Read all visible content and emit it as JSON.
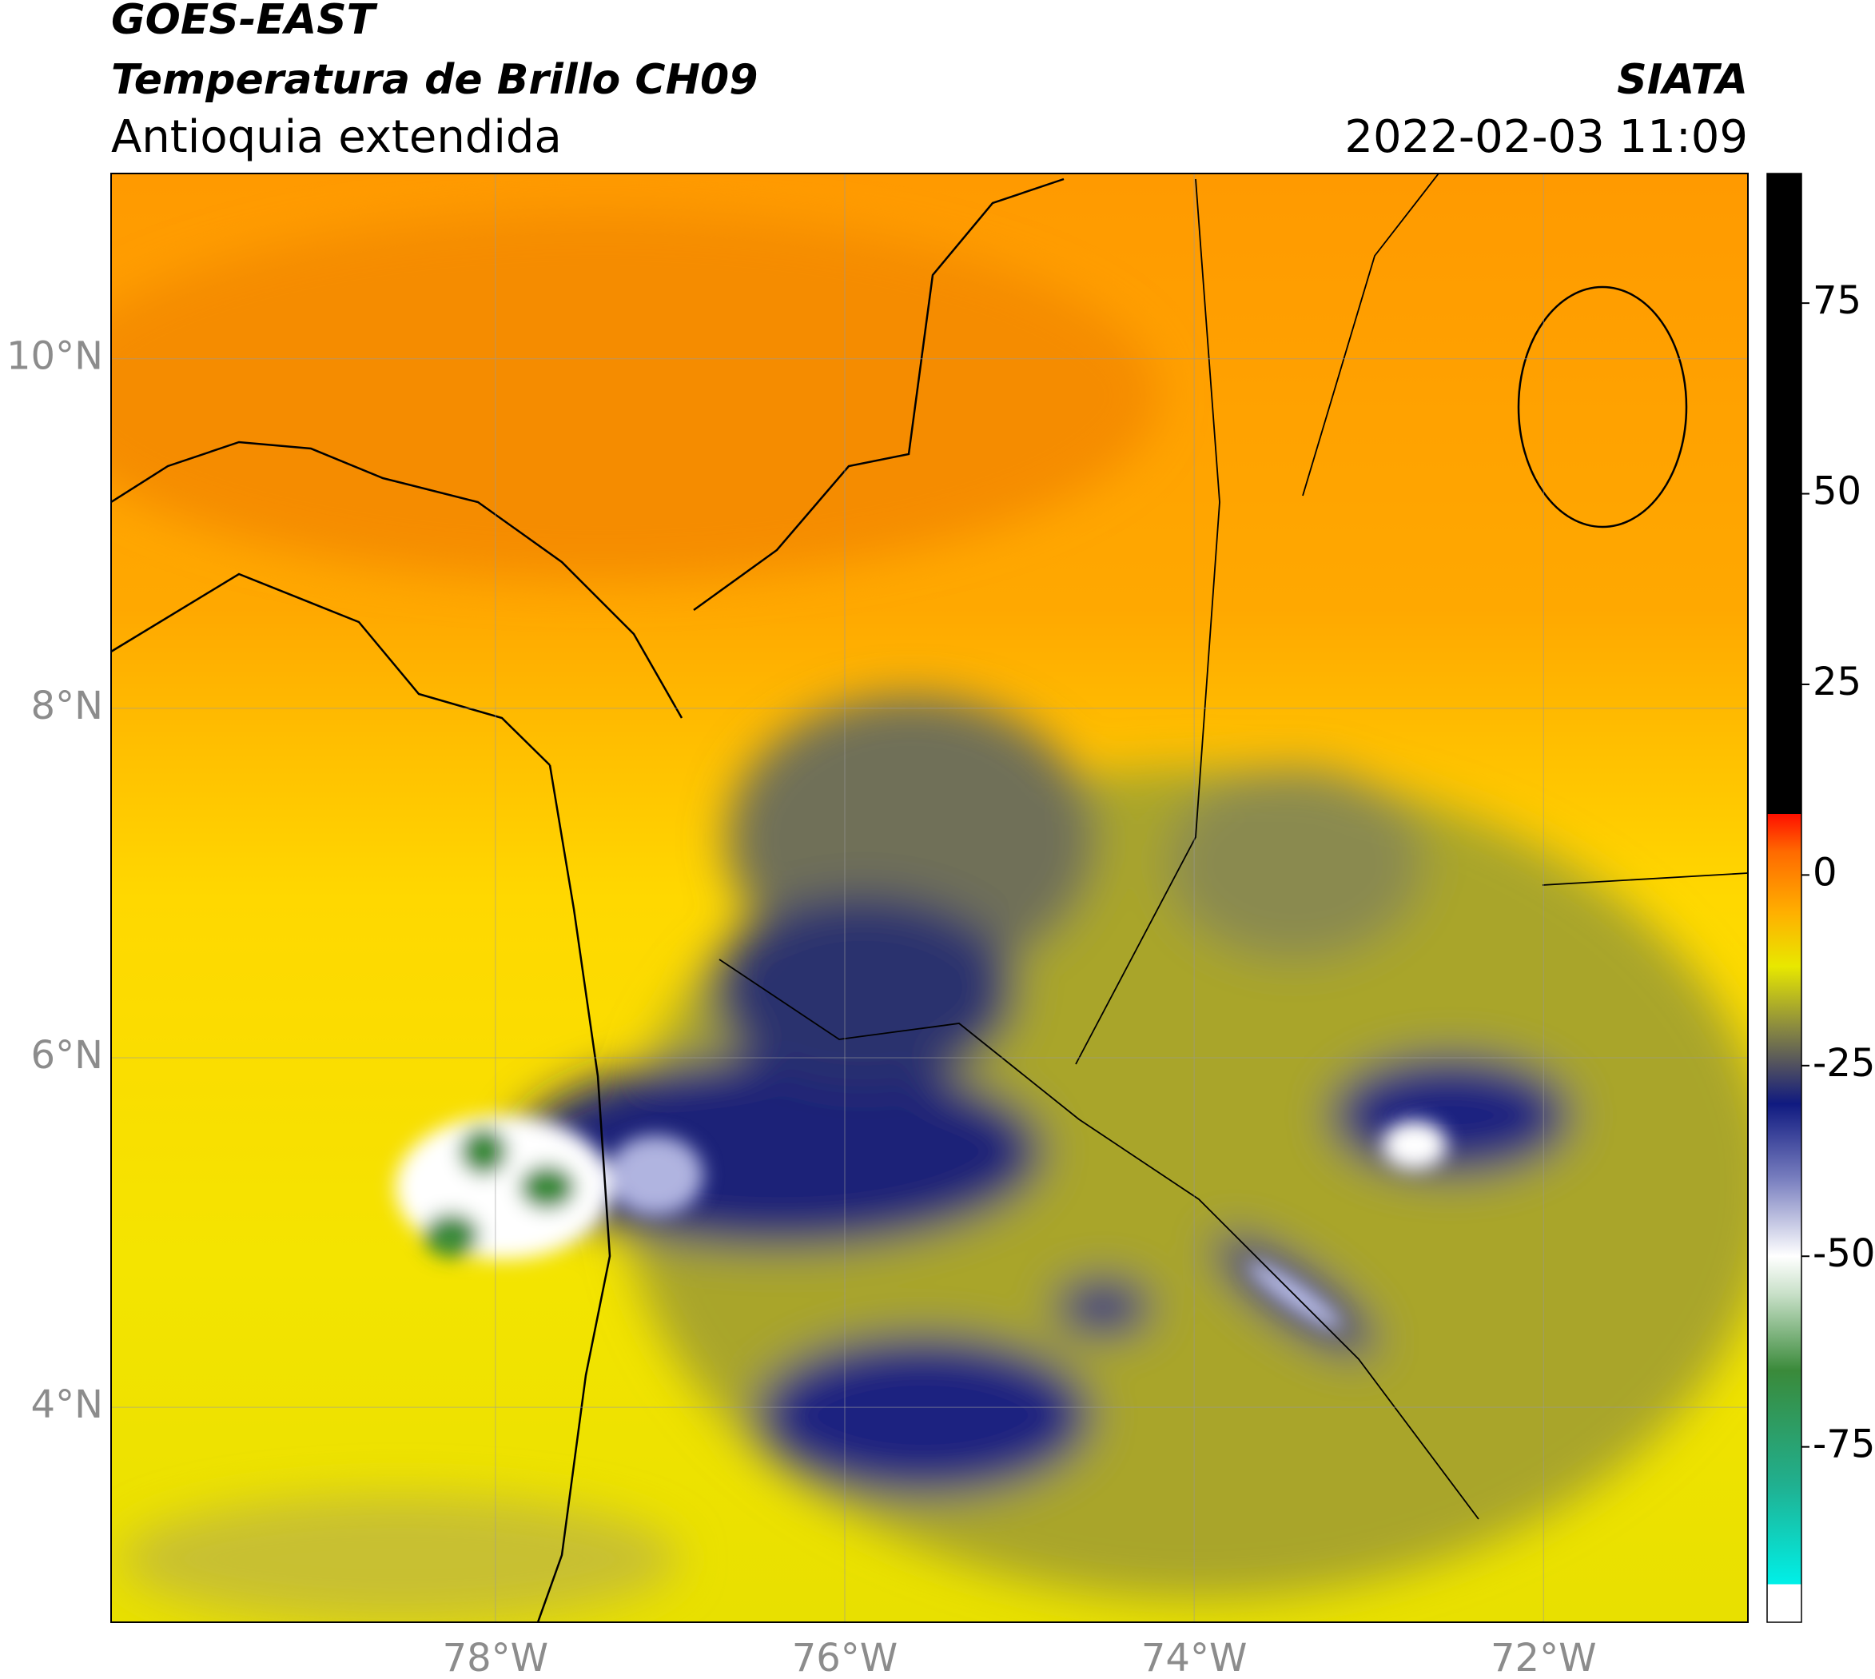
{
  "header": {
    "title": "GOES-EAST",
    "subtitle": "Temperatura de Brillo CH09",
    "region": "Antioquia extendida",
    "source": "SIATA",
    "datetime": "2022-02-03 11:09"
  },
  "map": {
    "xlim": [
      -80.2,
      -70.83
    ],
    "ylim": [
      2.77,
      11.06
    ],
    "xticks": [
      {
        "value": -78,
        "label": "78°W"
      },
      {
        "value": -76,
        "label": "76°W"
      },
      {
        "value": -74,
        "label": "74°W"
      },
      {
        "value": -72,
        "label": "72°W"
      }
    ],
    "yticks": [
      {
        "value": 4,
        "label": "4°N"
      },
      {
        "value": 6,
        "label": "6°N"
      },
      {
        "value": 8,
        "label": "8°N"
      },
      {
        "value": 10,
        "label": "10°N"
      }
    ],
    "grid": true
  },
  "colorbar": {
    "lim": [
      -98,
      92
    ],
    "ticks": [
      -75,
      -50,
      -25,
      0,
      25,
      50,
      75
    ],
    "stops": [
      [
        -98,
        "#ffffff"
      ],
      [
        -93,
        "#ffffff"
      ],
      [
        -93,
        "#00f0e8"
      ],
      [
        -80,
        "#20b090"
      ],
      [
        -65,
        "#3a8a3a"
      ],
      [
        -55,
        "#c8e0c8"
      ],
      [
        -50,
        "#ffffff"
      ],
      [
        -40,
        "#7a80c0"
      ],
      [
        -30,
        "#101a80"
      ],
      [
        -25,
        "#505060"
      ],
      [
        -20,
        "#8a8a40"
      ],
      [
        -12,
        "#e8e800"
      ],
      [
        -5,
        "#ffb000"
      ],
      [
        3,
        "#ff6a00"
      ],
      [
        8,
        "#ff1000"
      ],
      [
        8,
        "#000000"
      ],
      [
        92,
        "#000000"
      ]
    ]
  }
}
